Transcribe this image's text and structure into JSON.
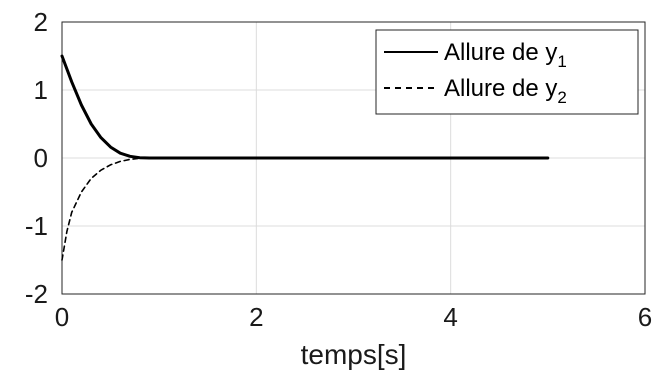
{
  "chart_data": {
    "type": "line",
    "xlabel": "temps[s]",
    "ylabel": "",
    "xlim": [
      0,
      6
    ],
    "ylim": [
      -2,
      2
    ],
    "x_ticks": [
      "0",
      "2",
      "4",
      "6"
    ],
    "y_ticks": [
      "2",
      "1",
      "0",
      "-1",
      "-2"
    ],
    "grid": true,
    "legend_position": "top-right",
    "series": [
      {
        "name": "Allure de y1",
        "legend_text": "Allure de y",
        "legend_subscript": "1",
        "line_style": "solid",
        "color": "#000000",
        "x": [
          0,
          0.1,
          0.2,
          0.3,
          0.4,
          0.5,
          0.6,
          0.7,
          0.8,
          0.9,
          1.0,
          2.0,
          3.0,
          4.0,
          5.0
        ],
        "y": [
          1.5,
          1.12,
          0.78,
          0.5,
          0.3,
          0.16,
          0.07,
          0.025,
          0.005,
          0.0,
          0.0,
          0.0,
          0.0,
          0.0,
          0.0
        ]
      },
      {
        "name": "Allure de y2",
        "legend_text": "Allure de y",
        "legend_subscript": "2",
        "line_style": "dashed",
        "color": "#000000",
        "x": [
          0,
          0.05,
          0.1,
          0.2,
          0.3,
          0.4,
          0.5,
          0.6,
          0.7,
          0.8,
          0.9
        ],
        "y": [
          -1.5,
          -1.08,
          -0.8,
          -0.5,
          -0.3,
          -0.18,
          -0.1,
          -0.05,
          -0.02,
          -0.005,
          0.0
        ]
      }
    ]
  }
}
